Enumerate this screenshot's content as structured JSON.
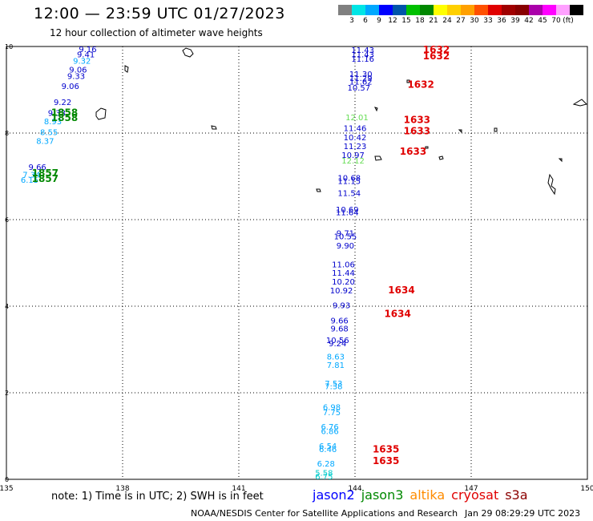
{
  "header": {
    "title": "12:00 — 23:59 UTC 01/27/2023",
    "subtitle": "12 hour collection of altimeter wave heights"
  },
  "legend": {
    "colors": [
      "#808080",
      "#00e5e5",
      "#00a8ff",
      "#0000ff",
      "#0055aa",
      "#00c000",
      "#008800",
      "#ffff00",
      "#ffd000",
      "#ffa000",
      "#ff5000",
      "#e00000",
      "#a00000",
      "#880000",
      "#aa00aa",
      "#ff00ff",
      "#ffa0ff",
      "#000000"
    ],
    "labels": [
      "3",
      "6",
      "9",
      "12",
      "15",
      "18",
      "21",
      "24",
      "27",
      "30",
      "33",
      "36",
      "39",
      "42",
      "45",
      "70"
    ],
    "unit": "(ft)"
  },
  "axes": {
    "x_ticks": [
      "135",
      "138",
      "141",
      "144",
      "147",
      "150"
    ],
    "y_ticks": [
      "10",
      "8",
      "6",
      "4",
      "2",
      "0"
    ],
    "x_range": [
      135,
      150
    ],
    "y_range": [
      0,
      10
    ]
  },
  "annotations": [
    {
      "text": "1632",
      "lon": 146.1,
      "lat": 9.85,
      "color": "#e00000"
    },
    {
      "text": "1632",
      "lon": 146.1,
      "lat": 9.7,
      "color": "#e00000"
    },
    {
      "text": "1632",
      "lon": 145.7,
      "lat": 9.05,
      "color": "#e00000"
    },
    {
      "text": "1633",
      "lon": 145.6,
      "lat": 8.23,
      "color": "#e00000"
    },
    {
      "text": "1633",
      "lon": 145.6,
      "lat": 7.97,
      "color": "#e00000"
    },
    {
      "text": "1633",
      "lon": 145.5,
      "lat": 7.5,
      "color": "#e00000"
    },
    {
      "text": "1634",
      "lon": 145.2,
      "lat": 4.3,
      "color": "#e00000"
    },
    {
      "text": "1634",
      "lon": 145.1,
      "lat": 3.75,
      "color": "#e00000"
    },
    {
      "text": "1635",
      "lon": 144.8,
      "lat": 0.62,
      "color": "#e00000"
    },
    {
      "text": "1635",
      "lon": 144.8,
      "lat": 0.35,
      "color": "#e00000"
    },
    {
      "text": "1858",
      "lon": 136.5,
      "lat": 8.4,
      "color": "#008800"
    },
    {
      "text": "1858",
      "lon": 136.5,
      "lat": 8.28,
      "color": "#008800"
    },
    {
      "text": "1857",
      "lon": 136.0,
      "lat": 7.0,
      "color": "#008800"
    },
    {
      "text": "1857",
      "lon": 136.0,
      "lat": 6.87,
      "color": "#008800"
    }
  ],
  "observations": [
    {
      "text": "11.43",
      "lon": 144.2,
      "lat": 9.85,
      "color": "#0000cc"
    },
    {
      "text": "11.43",
      "lon": 144.2,
      "lat": 9.75,
      "color": "#0000cc"
    },
    {
      "text": "11.16",
      "lon": 144.2,
      "lat": 9.65,
      "color": "#0000cc"
    },
    {
      "text": "11.30",
      "lon": 144.15,
      "lat": 9.3,
      "color": "#0000cc"
    },
    {
      "text": "11.29",
      "lon": 144.15,
      "lat": 9.2,
      "color": "#0000cc"
    },
    {
      "text": "11.62",
      "lon": 144.15,
      "lat": 9.12,
      "color": "#0000cc"
    },
    {
      "text": "10.57",
      "lon": 144.1,
      "lat": 8.98,
      "color": "#0000cc"
    },
    {
      "text": "12.01",
      "lon": 144.05,
      "lat": 8.3,
      "color": "#66dd55"
    },
    {
      "text": "11.46",
      "lon": 144.0,
      "lat": 8.05,
      "color": "#0000cc"
    },
    {
      "text": "10.42",
      "lon": 144.0,
      "lat": 7.83,
      "color": "#0000cc"
    },
    {
      "text": "11.23",
      "lon": 144.0,
      "lat": 7.63,
      "color": "#0000cc"
    },
    {
      "text": "10.97",
      "lon": 143.95,
      "lat": 7.43,
      "color": "#0000cc"
    },
    {
      "text": "12.12",
      "lon": 143.95,
      "lat": 7.3,
      "color": "#66dd55"
    },
    {
      "text": "10.68",
      "lon": 143.85,
      "lat": 6.9,
      "color": "#0000cc"
    },
    {
      "text": "11.15",
      "lon": 143.85,
      "lat": 6.82,
      "color": "#0000cc"
    },
    {
      "text": "11.54",
      "lon": 143.85,
      "lat": 6.55,
      "color": "#0000cc"
    },
    {
      "text": "10.69",
      "lon": 143.8,
      "lat": 6.17,
      "color": "#0000cc"
    },
    {
      "text": "11.64",
      "lon": 143.8,
      "lat": 6.1,
      "color": "#0000cc"
    },
    {
      "text": "9.71",
      "lon": 143.75,
      "lat": 5.62,
      "color": "#0000cc"
    },
    {
      "text": "10.55",
      "lon": 143.75,
      "lat": 5.55,
      "color": "#0000cc"
    },
    {
      "text": "9.90",
      "lon": 143.75,
      "lat": 5.33,
      "color": "#0000cc"
    },
    {
      "text": "11.06",
      "lon": 143.7,
      "lat": 4.9,
      "color": "#0000cc"
    },
    {
      "text": "11.44",
      "lon": 143.7,
      "lat": 4.7,
      "color": "#0000cc"
    },
    {
      "text": "10.20",
      "lon": 143.7,
      "lat": 4.5,
      "color": "#0000cc"
    },
    {
      "text": "10.92",
      "lon": 143.65,
      "lat": 4.3,
      "color": "#0000cc"
    },
    {
      "text": "9.93",
      "lon": 143.65,
      "lat": 3.95,
      "color": "#0000cc"
    },
    {
      "text": "9.66",
      "lon": 143.6,
      "lat": 3.6,
      "color": "#0000cc"
    },
    {
      "text": "9.68",
      "lon": 143.6,
      "lat": 3.42,
      "color": "#0000cc"
    },
    {
      "text": "10.56",
      "lon": 143.55,
      "lat": 3.15,
      "color": "#0000cc"
    },
    {
      "text": "9.24",
      "lon": 143.55,
      "lat": 3.07,
      "color": "#0000cc"
    },
    {
      "text": "8.63",
      "lon": 143.5,
      "lat": 2.77,
      "color": "#00a8ff"
    },
    {
      "text": "7.81",
      "lon": 143.5,
      "lat": 2.57,
      "color": "#00a8ff"
    },
    {
      "text": "7.53",
      "lon": 143.45,
      "lat": 2.15,
      "color": "#00a8ff"
    },
    {
      "text": "7.38",
      "lon": 143.45,
      "lat": 2.08,
      "color": "#00a8ff"
    },
    {
      "text": "6.98",
      "lon": 143.4,
      "lat": 1.6,
      "color": "#00a8ff"
    },
    {
      "text": "7.75",
      "lon": 143.4,
      "lat": 1.48,
      "color": "#00a8ff"
    },
    {
      "text": "6.76",
      "lon": 143.35,
      "lat": 1.15,
      "color": "#00a8ff"
    },
    {
      "text": "6.86",
      "lon": 143.35,
      "lat": 1.05,
      "color": "#00a8ff"
    },
    {
      "text": "6.54",
      "lon": 143.3,
      "lat": 0.7,
      "color": "#00a8ff"
    },
    {
      "text": "6.46",
      "lon": 143.3,
      "lat": 0.63,
      "color": "#00a8ff"
    },
    {
      "text": "6.28",
      "lon": 143.25,
      "lat": 0.3,
      "color": "#00a8ff"
    },
    {
      "text": "5.58",
      "lon": 143.2,
      "lat": 0.08,
      "color": "#00cccc"
    },
    {
      "text": "6.75",
      "lon": 143.2,
      "lat": 0.0,
      "color": "#00cccc"
    },
    {
      "text": "9.16",
      "lon": 137.1,
      "lat": 9.87,
      "color": "#0000cc"
    },
    {
      "text": "9.41",
      "lon": 137.05,
      "lat": 9.75,
      "color": "#0000cc"
    },
    {
      "text": "9.32",
      "lon": 136.95,
      "lat": 9.6,
      "color": "#00a8ff"
    },
    {
      "text": "9.06",
      "lon": 136.85,
      "lat": 9.4,
      "color": "#0000cc"
    },
    {
      "text": "9.33",
      "lon": 136.8,
      "lat": 9.25,
      "color": "#0000cc"
    },
    {
      "text": "9.06",
      "lon": 136.65,
      "lat": 9.02,
      "color": "#0000cc"
    },
    {
      "text": "9.22",
      "lon": 136.45,
      "lat": 8.65,
      "color": "#0000cc"
    },
    {
      "text": "9.33",
      "lon": 136.3,
      "lat": 8.4,
      "color": "#0000cc"
    },
    {
      "text": "8.93",
      "lon": 136.2,
      "lat": 8.2,
      "color": "#00a8ff"
    },
    {
      "text": "8.55",
      "lon": 136.1,
      "lat": 7.95,
      "color": "#00a8ff"
    },
    {
      "text": "8.37",
      "lon": 136.0,
      "lat": 7.75,
      "color": "#00a8ff"
    },
    {
      "text": "9.66",
      "lon": 135.8,
      "lat": 7.15,
      "color": "#0000cc"
    },
    {
      "text": "7.34",
      "lon": 135.65,
      "lat": 6.97,
      "color": "#00a8ff"
    },
    {
      "text": "6.15",
      "lon": 135.6,
      "lat": 6.85,
      "color": "#00a8ff"
    }
  ],
  "footer": {
    "note": "note: 1) Time is in UTC; 2) SWH is in feet",
    "satellites": [
      {
        "name": "jason2",
        "color": "#0000ff"
      },
      {
        "name": "jason3",
        "color": "#008800"
      },
      {
        "name": "altika",
        "color": "#ff8c00"
      },
      {
        "name": "cryosat",
        "color": "#e00000"
      },
      {
        "name": "s3a",
        "color": "#8b0000"
      }
    ],
    "credit": "NOAA/NESDIS Center for Satellite Applications and Research",
    "timestamp": "Jan 29 08:29:29 UTC 2023"
  }
}
